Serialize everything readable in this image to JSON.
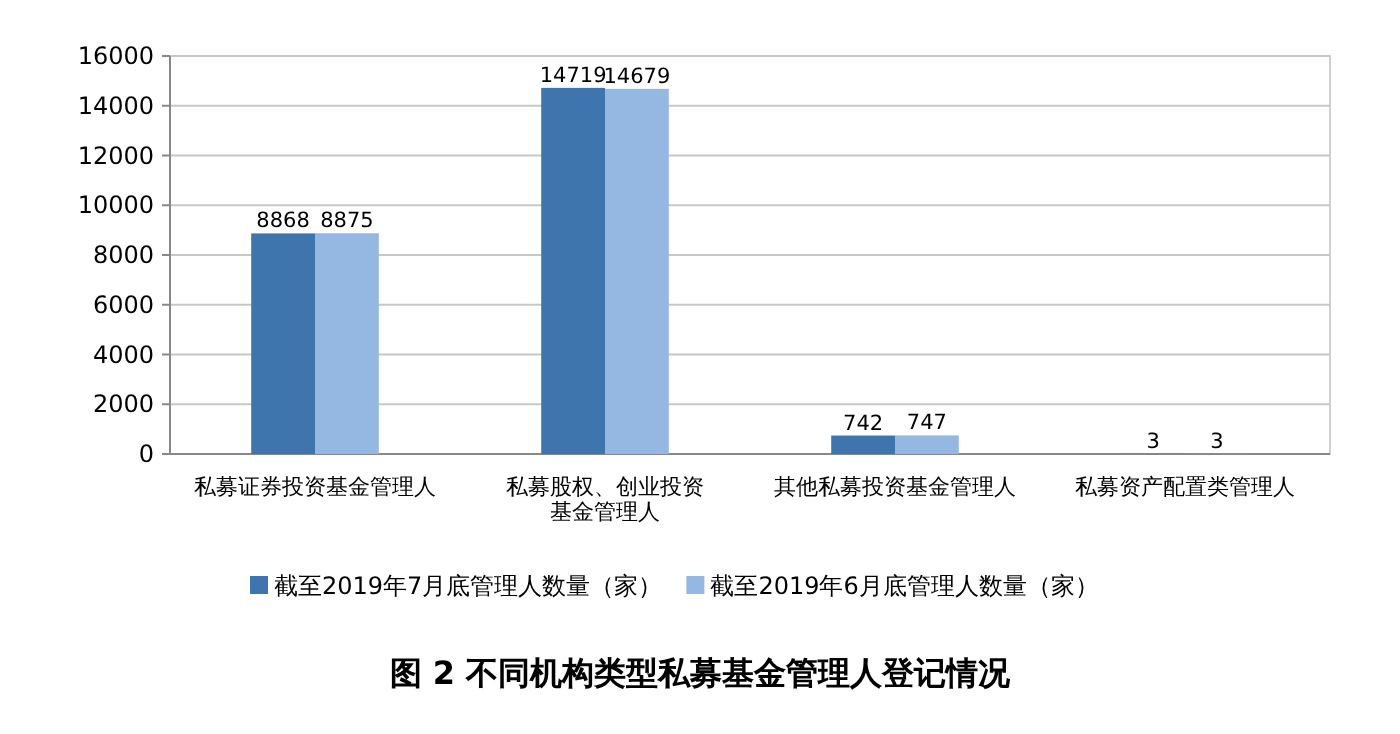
{
  "chart_data": {
    "type": "bar",
    "title": "图 2  不同机构类型私募基金管理人登记情况",
    "categories": [
      "私募证券投资基金管理人",
      "私募股权、创业投资基金管理人",
      "其他私募投资基金管理人",
      "私募资产配置类管理人"
    ],
    "series": [
      {
        "name": "截至2019年7月底管理人数量（家）",
        "color": "#3f75ad",
        "values": [
          8868,
          14719,
          742,
          3
        ]
      },
      {
        "name": "截至2019年6月底管理人数量（家）",
        "color": "#95b8e3",
        "values": [
          8875,
          14679,
          747,
          3
        ]
      }
    ],
    "ylim": [
      0,
      16000
    ],
    "yticks": [
      0,
      2000,
      4000,
      6000,
      8000,
      10000,
      12000,
      14000,
      16000
    ],
    "grid": "y",
    "legend": "bottom",
    "data_labels": true
  }
}
